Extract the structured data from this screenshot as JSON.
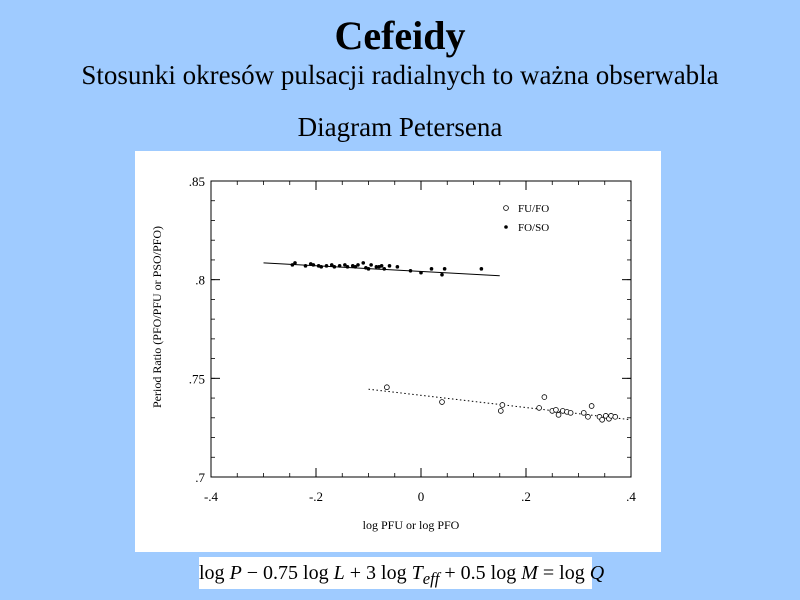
{
  "slide": {
    "title": "Cefeidy",
    "subtitle": "Stosunki okresów pulsacji radialnych to ważna obserwabla",
    "diagram_label": "Diagram Petersena",
    "formula": {
      "parts": [
        "log ",
        "P",
        " − 0.75 log ",
        "L",
        " + 3 log ",
        "T",
        "eff",
        " + 0.5 log ",
        "M",
        " = log ",
        "Q"
      ]
    }
  },
  "chart_data": {
    "type": "scatter",
    "title": "",
    "xlabel": "log PFU or log PFO",
    "ylabel": "Period Ratio (PFO/PFU or PSO/PFO)",
    "xlim": [
      -0.4,
      0.4
    ],
    "ylim": [
      0.7,
      0.85
    ],
    "x_ticks": [
      -0.4,
      -0.2,
      0,
      0.2,
      0.4
    ],
    "x_tick_labels": [
      "-.4",
      "-.2",
      "0",
      ".2",
      ".4"
    ],
    "y_ticks": [
      0.7,
      0.75,
      0.8,
      0.85
    ],
    "y_tick_labels": [
      ".7",
      ".75",
      ".8",
      ".85"
    ],
    "legend_position": "top-right",
    "series": [
      {
        "name": "FU/FO",
        "marker": "open-circle",
        "fit": {
          "style": "dotted",
          "x": [
            -0.1,
            0.4
          ],
          "y": [
            0.7445,
            0.729
          ]
        },
        "points": [
          [
            -0.065,
            0.7455
          ],
          [
            0.04,
            0.738
          ],
          [
            0.155,
            0.7365
          ],
          [
            0.152,
            0.7335
          ],
          [
            0.225,
            0.735
          ],
          [
            0.235,
            0.7405
          ],
          [
            0.25,
            0.7335
          ],
          [
            0.257,
            0.734
          ],
          [
            0.262,
            0.7315
          ],
          [
            0.27,
            0.7335
          ],
          [
            0.278,
            0.733
          ],
          [
            0.285,
            0.7325
          ],
          [
            0.31,
            0.7325
          ],
          [
            0.318,
            0.7305
          ],
          [
            0.325,
            0.736
          ],
          [
            0.34,
            0.7305
          ],
          [
            0.345,
            0.729
          ],
          [
            0.352,
            0.731
          ],
          [
            0.358,
            0.7295
          ],
          [
            0.362,
            0.731
          ],
          [
            0.37,
            0.7305
          ]
        ]
      },
      {
        "name": "FO/SO",
        "marker": "filled-dot",
        "fit": {
          "style": "solid",
          "x": [
            -0.3,
            0.15
          ],
          "y": [
            0.8085,
            0.802
          ]
        },
        "points": [
          [
            -0.245,
            0.8075
          ],
          [
            -0.24,
            0.8085
          ],
          [
            -0.22,
            0.807
          ],
          [
            -0.21,
            0.808
          ],
          [
            -0.205,
            0.8075
          ],
          [
            -0.195,
            0.807
          ],
          [
            -0.19,
            0.8065
          ],
          [
            -0.18,
            0.807
          ],
          [
            -0.17,
            0.8075
          ],
          [
            -0.165,
            0.8065
          ],
          [
            -0.155,
            0.807
          ],
          [
            -0.145,
            0.8075
          ],
          [
            -0.14,
            0.8065
          ],
          [
            -0.13,
            0.807
          ],
          [
            -0.125,
            0.8065
          ],
          [
            -0.12,
            0.8075
          ],
          [
            -0.11,
            0.8085
          ],
          [
            -0.105,
            0.806
          ],
          [
            -0.1,
            0.8055
          ],
          [
            -0.095,
            0.8075
          ],
          [
            -0.085,
            0.8065
          ],
          [
            -0.08,
            0.8065
          ],
          [
            -0.075,
            0.807
          ],
          [
            -0.07,
            0.8055
          ],
          [
            -0.06,
            0.807
          ],
          [
            -0.045,
            0.8065
          ],
          [
            -0.02,
            0.8045
          ],
          [
            0.0,
            0.8035
          ],
          [
            0.02,
            0.8055
          ],
          [
            0.04,
            0.8025
          ],
          [
            0.045,
            0.8055
          ],
          [
            0.115,
            0.8055
          ]
        ]
      }
    ]
  }
}
